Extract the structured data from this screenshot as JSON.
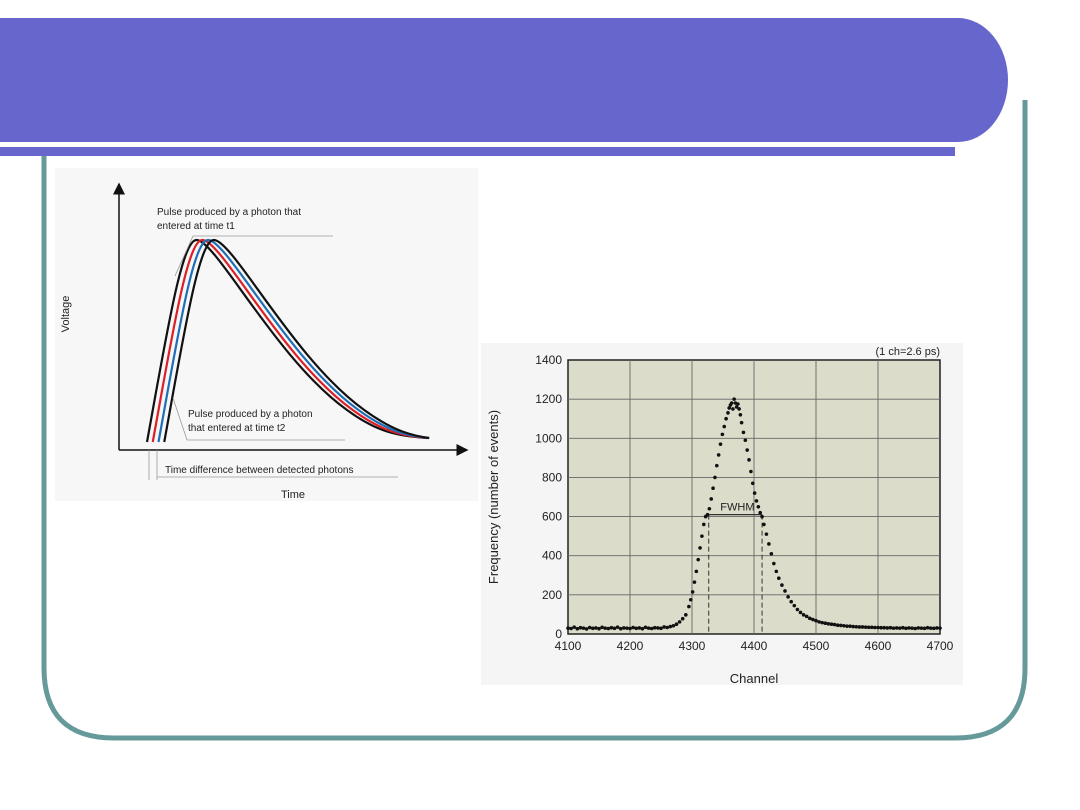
{
  "slide": {
    "title": "",
    "colors": {
      "banner": "#6666cc",
      "frame": "#669999",
      "underline": "#6666cc"
    }
  },
  "chart_data": [
    {
      "type": "line",
      "title": "",
      "xlabel": "Time",
      "ylabel": "Voltage",
      "series": [
        {
          "color": "#111111",
          "shift": 0.0
        },
        {
          "color": "#dd1f26",
          "shift": 0.25
        },
        {
          "color": "#1f6fb8",
          "shift": 0.5
        },
        {
          "color": "#111111",
          "shift": 0.75
        }
      ],
      "annotations": {
        "pulse_t1": [
          "Pulse produced by a photon that",
          "entered at time t1"
        ],
        "pulse_t2": [
          "Pulse produced by a photon",
          "that entered at time t2"
        ],
        "time_difference": "Time difference between detected photons"
      }
    },
    {
      "type": "scatter",
      "title": "",
      "note": "(1 ch=2.6 ps)",
      "xlabel": "Channel",
      "ylabel": "Frequency (number of events)",
      "xlim": [
        4100,
        4700
      ],
      "ylim": [
        0,
        1400
      ],
      "xticks": [
        4100,
        4200,
        4300,
        4400,
        4500,
        4600,
        4700
      ],
      "yticks": [
        0,
        200,
        400,
        600,
        800,
        1000,
        1200,
        1400
      ],
      "grid": true,
      "fwhm_label": "FWHM",
      "fwhm": {
        "left": 4327,
        "right": 4413,
        "level": 610
      },
      "peak": {
        "channel": 4368,
        "value": 1200
      },
      "points": [
        [
          4100,
          30
        ],
        [
          4105,
          28
        ],
        [
          4110,
          35
        ],
        [
          4115,
          27
        ],
        [
          4120,
          32
        ],
        [
          4125,
          30
        ],
        [
          4130,
          26
        ],
        [
          4135,
          33
        ],
        [
          4140,
          29
        ],
        [
          4145,
          31
        ],
        [
          4150,
          27
        ],
        [
          4155,
          34
        ],
        [
          4160,
          30
        ],
        [
          4165,
          28
        ],
        [
          4170,
          32
        ],
        [
          4175,
          29
        ],
        [
          4180,
          35
        ],
        [
          4185,
          27
        ],
        [
          4190,
          31
        ],
        [
          4195,
          30
        ],
        [
          4200,
          28
        ],
        [
          4205,
          33
        ],
        [
          4210,
          29
        ],
        [
          4215,
          31
        ],
        [
          4220,
          27
        ],
        [
          4225,
          34
        ],
        [
          4230,
          30
        ],
        [
          4235,
          28
        ],
        [
          4240,
          32
        ],
        [
          4245,
          31
        ],
        [
          4250,
          29
        ],
        [
          4255,
          36
        ],
        [
          4260,
          33
        ],
        [
          4265,
          38
        ],
        [
          4270,
          42
        ],
        [
          4275,
          50
        ],
        [
          4280,
          62
        ],
        [
          4285,
          78
        ],
        [
          4290,
          98
        ],
        [
          4295,
          140
        ],
        [
          4298,
          175
        ],
        [
          4301,
          215
        ],
        [
          4304,
          265
        ],
        [
          4307,
          320
        ],
        [
          4310,
          380
        ],
        [
          4313,
          440
        ],
        [
          4316,
          500
        ],
        [
          4319,
          560
        ],
        [
          4322,
          600
        ],
        [
          4325,
          610
        ],
        [
          4328,
          640
        ],
        [
          4331,
          690
        ],
        [
          4334,
          745
        ],
        [
          4337,
          800
        ],
        [
          4340,
          860
        ],
        [
          4343,
          915
        ],
        [
          4346,
          970
        ],
        [
          4349,
          1020
        ],
        [
          4352,
          1060
        ],
        [
          4355,
          1100
        ],
        [
          4358,
          1130
        ],
        [
          4360,
          1155
        ],
        [
          4362,
          1170
        ],
        [
          4364,
          1180
        ],
        [
          4366,
          1150
        ],
        [
          4368,
          1200
        ],
        [
          4370,
          1180
        ],
        [
          4372,
          1160
        ],
        [
          4374,
          1175
        ],
        [
          4376,
          1150
        ],
        [
          4378,
          1120
        ],
        [
          4380,
          1080
        ],
        [
          4383,
          1030
        ],
        [
          4386,
          990
        ],
        [
          4389,
          940
        ],
        [
          4392,
          890
        ],
        [
          4395,
          830
        ],
        [
          4398,
          770
        ],
        [
          4401,
          720
        ],
        [
          4404,
          680
        ],
        [
          4407,
          650
        ],
        [
          4410,
          620
        ],
        [
          4413,
          600
        ],
        [
          4416,
          560
        ],
        [
          4420,
          510
        ],
        [
          4424,
          460
        ],
        [
          4428,
          410
        ],
        [
          4432,
          360
        ],
        [
          4436,
          320
        ],
        [
          4440,
          285
        ],
        [
          4445,
          250
        ],
        [
          4450,
          220
        ],
        [
          4455,
          190
        ],
        [
          4460,
          165
        ],
        [
          4465,
          145
        ],
        [
          4470,
          125
        ],
        [
          4475,
          110
        ],
        [
          4480,
          98
        ],
        [
          4485,
          90
        ],
        [
          4490,
          80
        ],
        [
          4495,
          74
        ],
        [
          4500,
          68
        ],
        [
          4505,
          62
        ],
        [
          4510,
          58
        ],
        [
          4515,
          55
        ],
        [
          4520,
          52
        ],
        [
          4525,
          50
        ],
        [
          4530,
          48
        ],
        [
          4535,
          45
        ],
        [
          4540,
          44
        ],
        [
          4545,
          42
        ],
        [
          4550,
          40
        ],
        [
          4555,
          40
        ],
        [
          4560,
          38
        ],
        [
          4565,
          37
        ],
        [
          4570,
          36
        ],
        [
          4575,
          36
        ],
        [
          4580,
          35
        ],
        [
          4585,
          34
        ],
        [
          4590,
          34
        ],
        [
          4595,
          33
        ],
        [
          4600,
          33
        ],
        [
          4605,
          32
        ],
        [
          4610,
          32
        ],
        [
          4615,
          31
        ],
        [
          4620,
          32
        ],
        [
          4625,
          30
        ],
        [
          4630,
          31
        ],
        [
          4635,
          30
        ],
        [
          4640,
          32
        ],
        [
          4645,
          29
        ],
        [
          4650,
          31
        ],
        [
          4655,
          30
        ],
        [
          4660,
          28
        ],
        [
          4665,
          31
        ],
        [
          4670,
          30
        ],
        [
          4675,
          29
        ],
        [
          4680,
          32
        ],
        [
          4685,
          30
        ],
        [
          4690,
          29
        ],
        [
          4695,
          31
        ],
        [
          4700,
          30
        ]
      ]
    }
  ]
}
